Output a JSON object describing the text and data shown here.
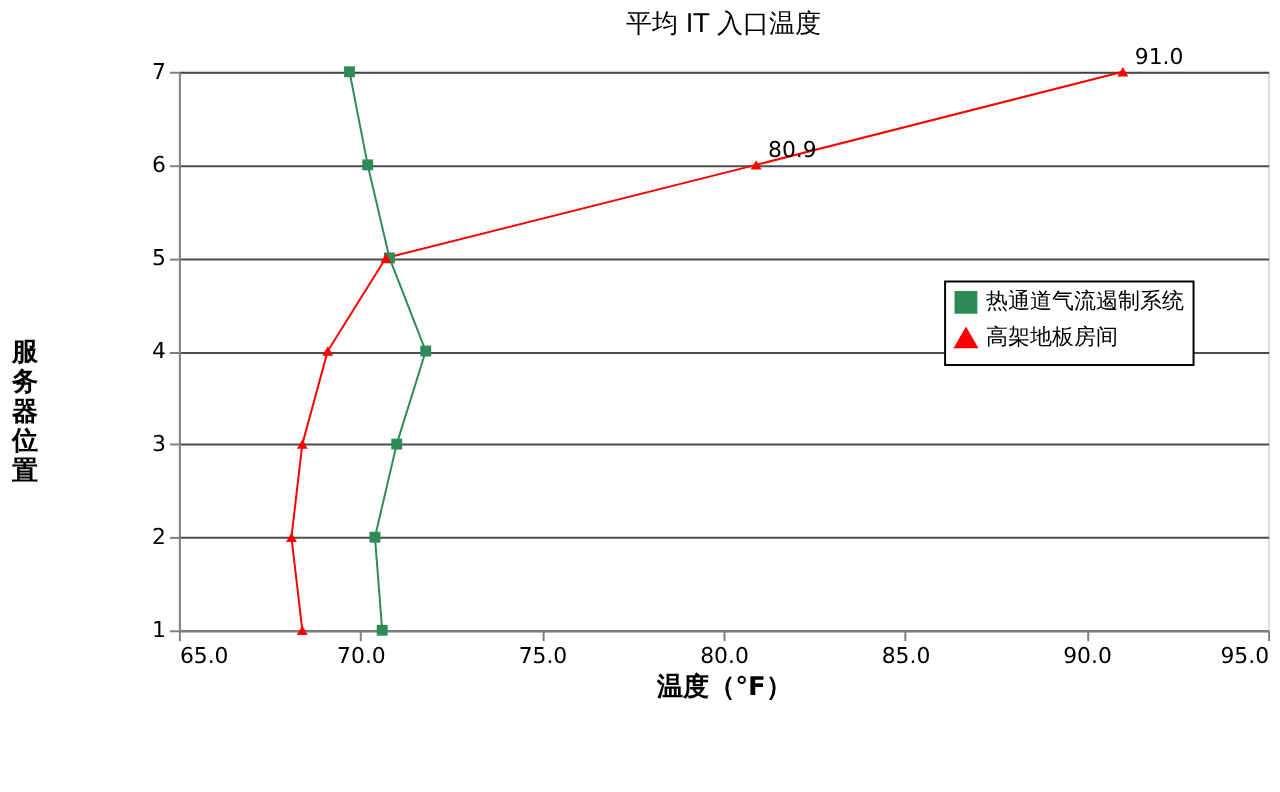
{
  "chart_data": {
    "type": "line",
    "title": "平均 IT 入口温度",
    "xlabel": "温度（°F）",
    "ylabel": "服务器位置",
    "orientation": "horizontal",
    "x": [
      1,
      2,
      3,
      4,
      5,
      6,
      7
    ],
    "series": [
      {
        "name": "热通道气流遏制系统",
        "color": "#2e8b57",
        "marker": "square",
        "values": [
          70.6,
          70.4,
          71.0,
          71.8,
          70.8,
          70.2,
          69.7
        ]
      },
      {
        "name": "高架地板房间",
        "color": "#ff0000",
        "marker": "triangle",
        "values": [
          68.4,
          68.1,
          68.4,
          69.1,
          70.7,
          80.9,
          91.0
        ],
        "value_labels": [
          null,
          null,
          null,
          null,
          null,
          "80.9",
          "91.0"
        ]
      }
    ],
    "xlim": [
      65,
      95
    ],
    "xticks": [
      {
        "value": 65,
        "label": "65.0"
      },
      {
        "value": 70,
        "label": "70.0"
      },
      {
        "value": 75,
        "label": "75.0"
      },
      {
        "value": 80,
        "label": "80.0"
      },
      {
        "value": 85,
        "label": "85.0"
      },
      {
        "value": 90,
        "label": "90.0"
      },
      {
        "value": 95,
        "label": "95.0"
      }
    ],
    "ylim": [
      1,
      7
    ],
    "yticks": [
      1,
      2,
      3,
      4,
      5,
      6,
      7
    ],
    "grid": "y",
    "legend": "right",
    "line_style": "solid"
  }
}
